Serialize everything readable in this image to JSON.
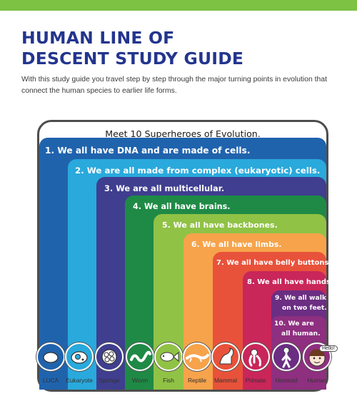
{
  "page": {
    "title_line1": "HUMAN LINE OF",
    "title_line2": "DESCENT STUDY GUIDE",
    "intro": "With this study guide you travel step by step through the major turning points in evolution that connect the human species to earlier life forms."
  },
  "diagram": {
    "title": "Meet 10 Superheroes of Evolution.",
    "steps": [
      {
        "text": "1. We all have DNA and are made of cells.",
        "color": "#2063ad"
      },
      {
        "text": "2. We are all made from complex (eukaryotic) cells.",
        "color": "#29a9dc"
      },
      {
        "text": "3. We are all multicellular.",
        "color": "#3f3e8f"
      },
      {
        "text": "4. We all have brains.",
        "color": "#1f8a45"
      },
      {
        "text": "5. We all have backbones.",
        "color": "#90c245"
      },
      {
        "text": "6. We all have limbs.",
        "color": "#f6a34b"
      },
      {
        "text": "7. We all have belly buttons.",
        "color": "#e8523a"
      },
      {
        "text": "8. We all have hands.",
        "color": "#c9265a"
      },
      {
        "text": "9. We all walk",
        "text2": "on two feet.",
        "color": "#6b2e83"
      },
      {
        "text": "10. We are",
        "text2": "all human.",
        "color": "#8e2f7f"
      }
    ],
    "organisms": [
      {
        "label": "LUCA",
        "icon": "luca-cell-icon",
        "color": "#2063ad"
      },
      {
        "label": "Eukaryote",
        "icon": "eukaryote-cell-icon",
        "color": "#29a9dc"
      },
      {
        "label": "Sponge",
        "icon": "sponge-icon",
        "color": "#3f3e8f"
      },
      {
        "label": "Worm",
        "icon": "worm-icon",
        "color": "#1f8a45"
      },
      {
        "label": "Fish",
        "icon": "fish-icon",
        "color": "#90c245"
      },
      {
        "label": "Reptile",
        "icon": "reptile-icon",
        "color": "#f6a34b"
      },
      {
        "label": "Mammal",
        "icon": "mammal-icon",
        "color": "#e8523a"
      },
      {
        "label": "Primate",
        "icon": "primate-icon",
        "color": "#c9265a"
      },
      {
        "label": "Hominid",
        "icon": "hominid-icon",
        "color": "#6b2e83"
      },
      {
        "label": "Human",
        "icon": "human-face-icon",
        "color": "#8e2f7f"
      }
    ],
    "speech_bubble": "Hello!"
  }
}
